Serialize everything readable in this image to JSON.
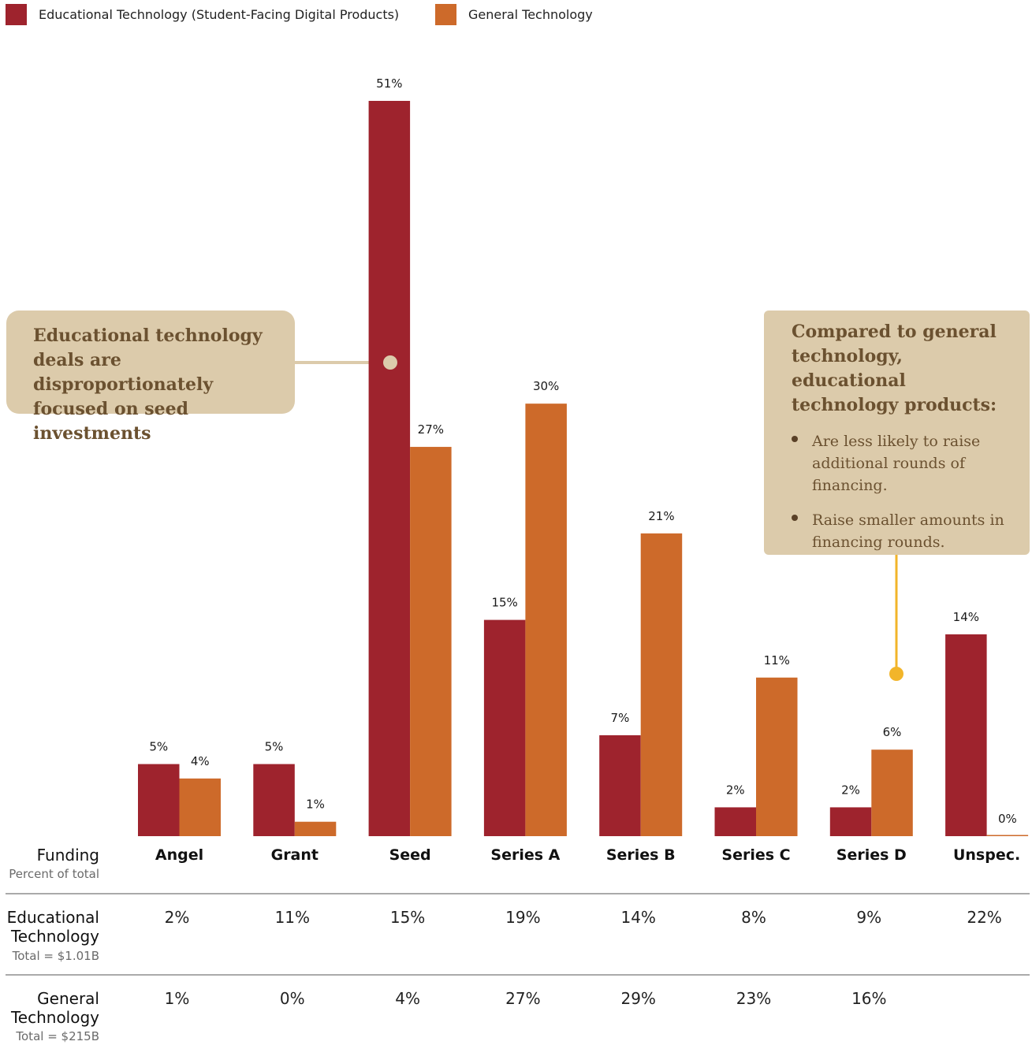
{
  "colors": {
    "edtech": "#9e232d",
    "general": "#cd6a2a",
    "callout_bg": "#dccbab",
    "callout_text": "#6b5130",
    "pointer_yellow": "#f2b52a",
    "pointer_tan": "#dccbab"
  },
  "legend": [
    {
      "label": "Educational Technology (Student-Facing Digital Products)",
      "color": "#9e232d"
    },
    {
      "label": "General Technology",
      "color": "#cd6a2a"
    }
  ],
  "callouts": {
    "left": "Educational technology deals are disproportionately focused on seed investments",
    "right": {
      "heading": "Compared to general technology, educational technology products:",
      "bullets": [
        "Are less likely to raise additional rounds of financing.",
        "Raise smaller amounts in financing rounds."
      ]
    }
  },
  "chart_data": {
    "type": "bar",
    "categories": [
      "Angel",
      "Grant",
      "Seed",
      "Series A",
      "Series B",
      "Series C",
      "Series D",
      "Unspec."
    ],
    "series": [
      {
        "name": "Educational Technology (Student-Facing Digital Products)",
        "values": [
          5,
          5,
          51,
          15,
          7,
          2,
          2,
          14
        ],
        "labels": [
          "5%",
          "5%",
          "51%",
          "15%",
          "7%",
          "2%",
          "2%",
          "14%"
        ]
      },
      {
        "name": "General Technology",
        "values": [
          4,
          1,
          27,
          30,
          21,
          11,
          6,
          0
        ],
        "labels": [
          "4%",
          "1%",
          "27%",
          "30%",
          "21%",
          "11%",
          "6%",
          "0%"
        ]
      }
    ],
    "ylim": [
      0,
      51
    ]
  },
  "table": {
    "header": {
      "title": "Funding",
      "subtitle": "Percent of total"
    },
    "rows": [
      {
        "title_lines": [
          "Educational",
          "Technology"
        ],
        "subtitle": "Total = $1.01B",
        "values": [
          "2%",
          "11%",
          "15%",
          "19%",
          "14%",
          "8%",
          "9%",
          "22%"
        ]
      },
      {
        "title_lines": [
          "General",
          "Technology"
        ],
        "subtitle": "Total = $215B",
        "values": [
          "1%",
          "0%",
          "4%",
          "27%",
          "29%",
          "23%",
          "16%",
          ""
        ]
      }
    ]
  }
}
